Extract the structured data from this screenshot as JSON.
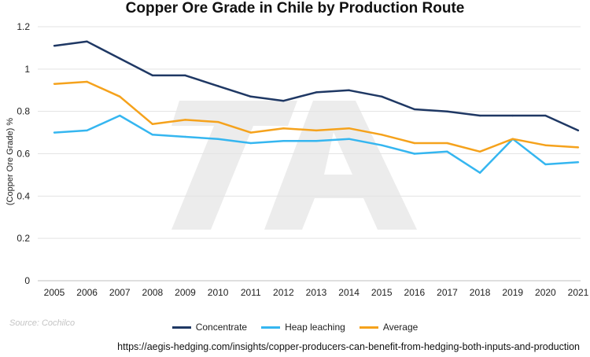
{
  "chart_data": {
    "type": "line",
    "title": "Copper Ore Grade in Chile by Production Route",
    "xlabel": "",
    "ylabel": "(Copper Ore Grade) %",
    "ylim": [
      0,
      1.2
    ],
    "yticks": [
      "0",
      "0.2",
      "0.4",
      "0.6",
      "0.8",
      "1",
      "1.2"
    ],
    "grid": true,
    "legend_position": "bottom",
    "categories": [
      "2005",
      "2006",
      "2007",
      "2008",
      "2009",
      "2010",
      "2011",
      "2012",
      "2013",
      "2014",
      "2015",
      "2016",
      "2017",
      "2018",
      "2019",
      "2020",
      "2021"
    ],
    "series": [
      {
        "name": "Concentrate",
        "color": "#1f3864",
        "values": [
          1.11,
          1.13,
          1.05,
          0.97,
          0.97,
          0.92,
          0.87,
          0.85,
          0.89,
          0.9,
          0.87,
          0.81,
          0.8,
          0.78,
          0.78,
          0.78,
          0.71
        ]
      },
      {
        "name": "Heap leaching",
        "color": "#35b6f0",
        "values": [
          0.7,
          0.71,
          0.78,
          0.69,
          0.68,
          0.67,
          0.65,
          0.66,
          0.66,
          0.67,
          0.64,
          0.6,
          0.61,
          0.51,
          0.67,
          0.55,
          0.56
        ]
      },
      {
        "name": "Average",
        "color": "#f5a21c",
        "values": [
          0.93,
          0.94,
          0.87,
          0.74,
          0.76,
          0.75,
          0.7,
          0.72,
          0.71,
          0.72,
          0.69,
          0.65,
          0.65,
          0.61,
          0.67,
          0.64,
          0.63
        ]
      }
    ]
  },
  "watermark": "TA",
  "source_note": "Source: Cochilco",
  "footer_url": "https://aegis-hedging.com/insights/copper-producers-can-benefit-from-hedging-both-inputs-and-production"
}
